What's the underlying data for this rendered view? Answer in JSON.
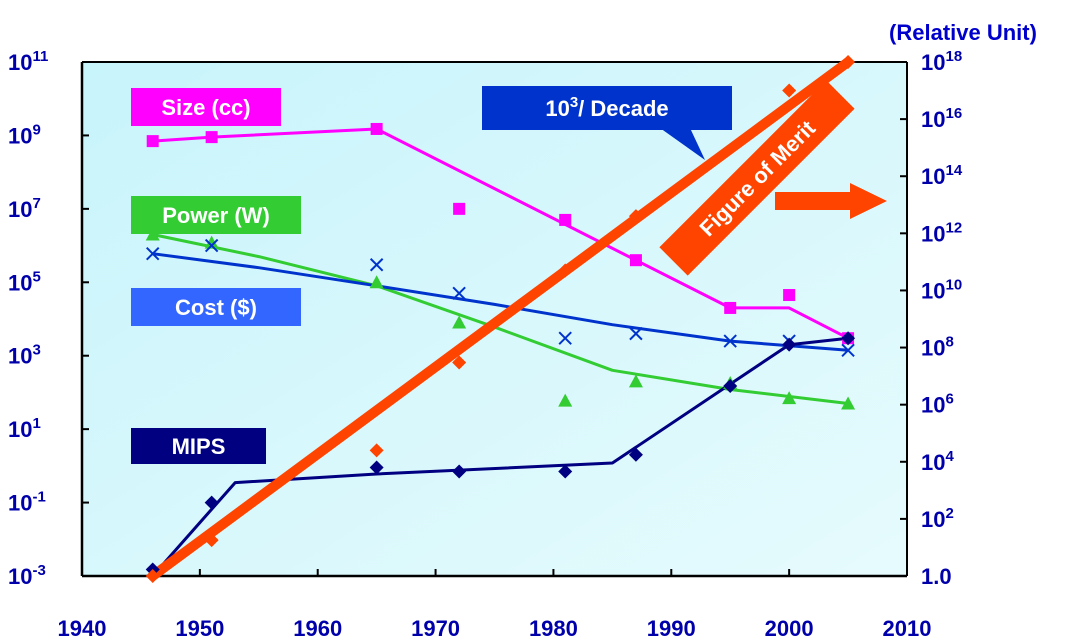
{
  "chart_data": {
    "type": "scatter",
    "unit_note": "(Relative Unit)",
    "x": {
      "lim": [
        1940,
        2010
      ],
      "ticks": [
        1940,
        1950,
        1960,
        1970,
        1980,
        1990,
        2000,
        2010
      ]
    },
    "y_left": {
      "scale": "log",
      "lim_exp": [
        -3,
        11
      ],
      "tick_labels": [
        {
          "base": "10",
          "exp": "11",
          "e": 11
        },
        {
          "base": "10",
          "exp": "9",
          "e": 9
        },
        {
          "base": "10",
          "exp": "7",
          "e": 7
        },
        {
          "base": "10",
          "exp": "5",
          "e": 5
        },
        {
          "base": "10",
          "exp": "3",
          "e": 3
        },
        {
          "base": "10",
          "exp": "1",
          "e": 1
        },
        {
          "base": "10",
          "exp": "-1",
          "e": -1
        },
        {
          "base": "10",
          "exp": "-3",
          "e": -3
        }
      ]
    },
    "y_right": {
      "scale": "log",
      "lim_exp": [
        0,
        18
      ],
      "tick_labels": [
        {
          "base": "10",
          "exp": "18",
          "e": 18
        },
        {
          "base": "10",
          "exp": "16",
          "e": 16
        },
        {
          "base": "10",
          "exp": "14",
          "e": 14
        },
        {
          "base": "10",
          "exp": "12",
          "e": 12
        },
        {
          "base": "10",
          "exp": "10",
          "e": 10
        },
        {
          "base": "10",
          "exp": "8",
          "e": 8
        },
        {
          "base": "10",
          "exp": "6",
          "e": 6
        },
        {
          "base": "10",
          "exp": "4",
          "e": 4
        },
        {
          "base": "10",
          "exp": "2",
          "e": 2
        },
        {
          "base": "",
          "exp": "",
          "text": "1.0",
          "e": 0
        }
      ]
    },
    "series": [
      {
        "name": "Size (cc)",
        "color": "#ff00ff",
        "marker": "square",
        "axis": "left",
        "points": [
          [
            1946,
            700000000.0
          ],
          [
            1951,
            900000000.0
          ],
          [
            1965,
            1500000000.0
          ],
          [
            1972,
            10000000.0
          ],
          [
            1981,
            5000000.0
          ],
          [
            1987,
            400000.0
          ],
          [
            1995,
            20000.0
          ],
          [
            2000,
            45000.0
          ],
          [
            2005,
            3000.0
          ]
        ],
        "fit": [
          [
            1946,
            700000000.0
          ],
          [
            1951,
            900000000.0
          ],
          [
            1965,
            1500000000.0
          ],
          [
            1987,
            400000.0
          ],
          [
            1995,
            20000.0
          ],
          [
            2000,
            20000.0
          ],
          [
            2005,
            3000.0
          ]
        ]
      },
      {
        "name": "Power (W)",
        "color": "#33cc33",
        "marker": "triangle",
        "axis": "left",
        "points": [
          [
            1946,
            2000000.0
          ],
          [
            1951,
            1200000.0
          ],
          [
            1965,
            100000.0
          ],
          [
            1972,
            8000.0
          ],
          [
            1981,
            60
          ],
          [
            1987,
            200
          ],
          [
            1995,
            180
          ],
          [
            2000,
            70
          ],
          [
            2005,
            50
          ]
        ],
        "fit": [
          [
            1946,
            2000000.0
          ],
          [
            1955,
            500000.0
          ],
          [
            1965,
            80000.0
          ],
          [
            1975,
            6000.0
          ],
          [
            1985,
            400.0
          ],
          [
            1995,
            120.0
          ],
          [
            2005,
            50.0
          ]
        ]
      },
      {
        "name": "Cost ($)",
        "color": "#0033cc",
        "marker": "x",
        "axis": "left",
        "points": [
          [
            1946,
            600000.0
          ],
          [
            1951,
            1000000.0
          ],
          [
            1965,
            300000.0
          ],
          [
            1972,
            50000.0
          ],
          [
            1981,
            3000.0
          ],
          [
            1987,
            4000.0
          ],
          [
            1995,
            2500.0
          ],
          [
            2000,
            2500.0
          ],
          [
            2005,
            1400.0
          ]
        ],
        "fit": [
          [
            1946,
            600000.0
          ],
          [
            1955,
            250000.0
          ],
          [
            1965,
            80000.0
          ],
          [
            1975,
            25000.0
          ],
          [
            1985,
            7000.0
          ],
          [
            1995,
            2500.0
          ],
          [
            2005,
            1400.0
          ]
        ]
      },
      {
        "name": "MIPS",
        "color": "#000080",
        "marker": "diamond",
        "axis": "left",
        "points": [
          [
            1946,
            0.0015
          ],
          [
            1951,
            0.1
          ],
          [
            1965,
            0.9
          ],
          [
            1972,
            0.7
          ],
          [
            1981,
            0.7
          ],
          [
            1987,
            2
          ],
          [
            1995,
            150
          ],
          [
            2000,
            2000.0
          ],
          [
            2005,
            3000.0
          ]
        ],
        "fit": [
          [
            1946,
            0.001
          ],
          [
            1953,
            0.35
          ],
          [
            1965,
            0.6
          ],
          [
            1985,
            1.2
          ],
          [
            2000,
            2000.0
          ],
          [
            2005,
            3000.0
          ]
        ]
      },
      {
        "name": "Figure of Merit",
        "color": "#ff4400",
        "marker": "diamond",
        "axis": "right",
        "points": [
          [
            1946,
            1
          ],
          [
            1951,
            18
          ],
          [
            1965,
            25000.0
          ],
          [
            1972,
            30000000.0
          ],
          [
            1981,
            50000000000.0
          ],
          [
            1987,
            4000000000000.0
          ],
          [
            2000,
            1e+17
          ],
          [
            2005,
            1e+18
          ]
        ],
        "fit": [
          [
            1946,
            1
          ],
          [
            2005,
            1e+18
          ]
        ]
      }
    ],
    "annotations": {
      "size_label": "Size (cc)",
      "power_label": "Power (W)",
      "cost_label": "Cost ($)",
      "mips_label": "MIPS",
      "decade_base": "10",
      "decade_exp": "3",
      "decade_rest": "/ Decade",
      "fom_label": "Figure of Merit"
    }
  }
}
